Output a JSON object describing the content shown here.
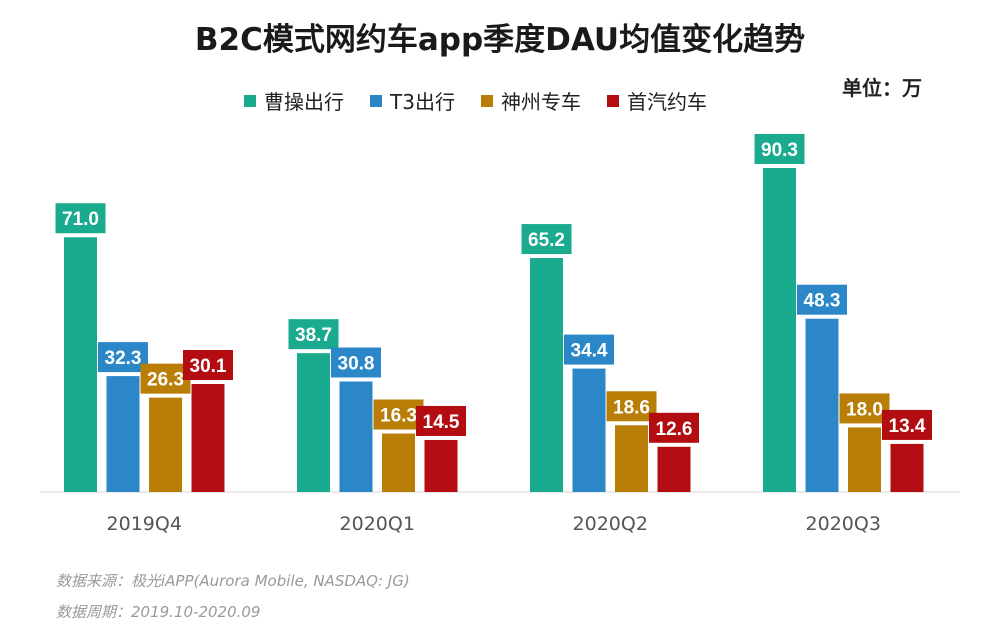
{
  "title": "B2C模式网约车app季度DAU均值变化趋势",
  "unit": "单位：万",
  "colors": {
    "曹操出行": "#1aaa8e",
    "T3出行": "#2b87c8",
    "神州专车": "#b97e07",
    "首汽约车": "#b30d12"
  },
  "chart_data": {
    "type": "bar",
    "categories": [
      "2019Q4",
      "2020Q1",
      "2020Q2",
      "2020Q3"
    ],
    "series": [
      {
        "name": "曹操出行",
        "values": [
          71.0,
          38.7,
          65.2,
          90.3
        ]
      },
      {
        "name": "T3出行",
        "values": [
          32.3,
          30.8,
          34.4,
          48.3
        ]
      },
      {
        "name": "神州专车",
        "values": [
          26.3,
          16.3,
          18.6,
          18.0
        ]
      },
      {
        "name": "首汽约车",
        "values": [
          30.1,
          14.5,
          12.6,
          13.4
        ]
      }
    ],
    "value_labels": [
      [
        "71.0",
        "38.7",
        "65.2",
        "90.3"
      ],
      [
        "32.3",
        "30.8",
        "34.4",
        "48.3"
      ],
      [
        "26.3",
        "16.3",
        "18.6",
        "18.0"
      ],
      [
        "30.1",
        "14.5",
        "12.6",
        "13.4"
      ]
    ],
    "ylim": [
      0,
      100
    ],
    "grid": false,
    "legend_position": "top"
  },
  "footer": {
    "source": "数据来源：极光iAPP(Aurora Mobile, NASDAQ: JG)",
    "period": "数据周期：2019.10-2020.09"
  }
}
